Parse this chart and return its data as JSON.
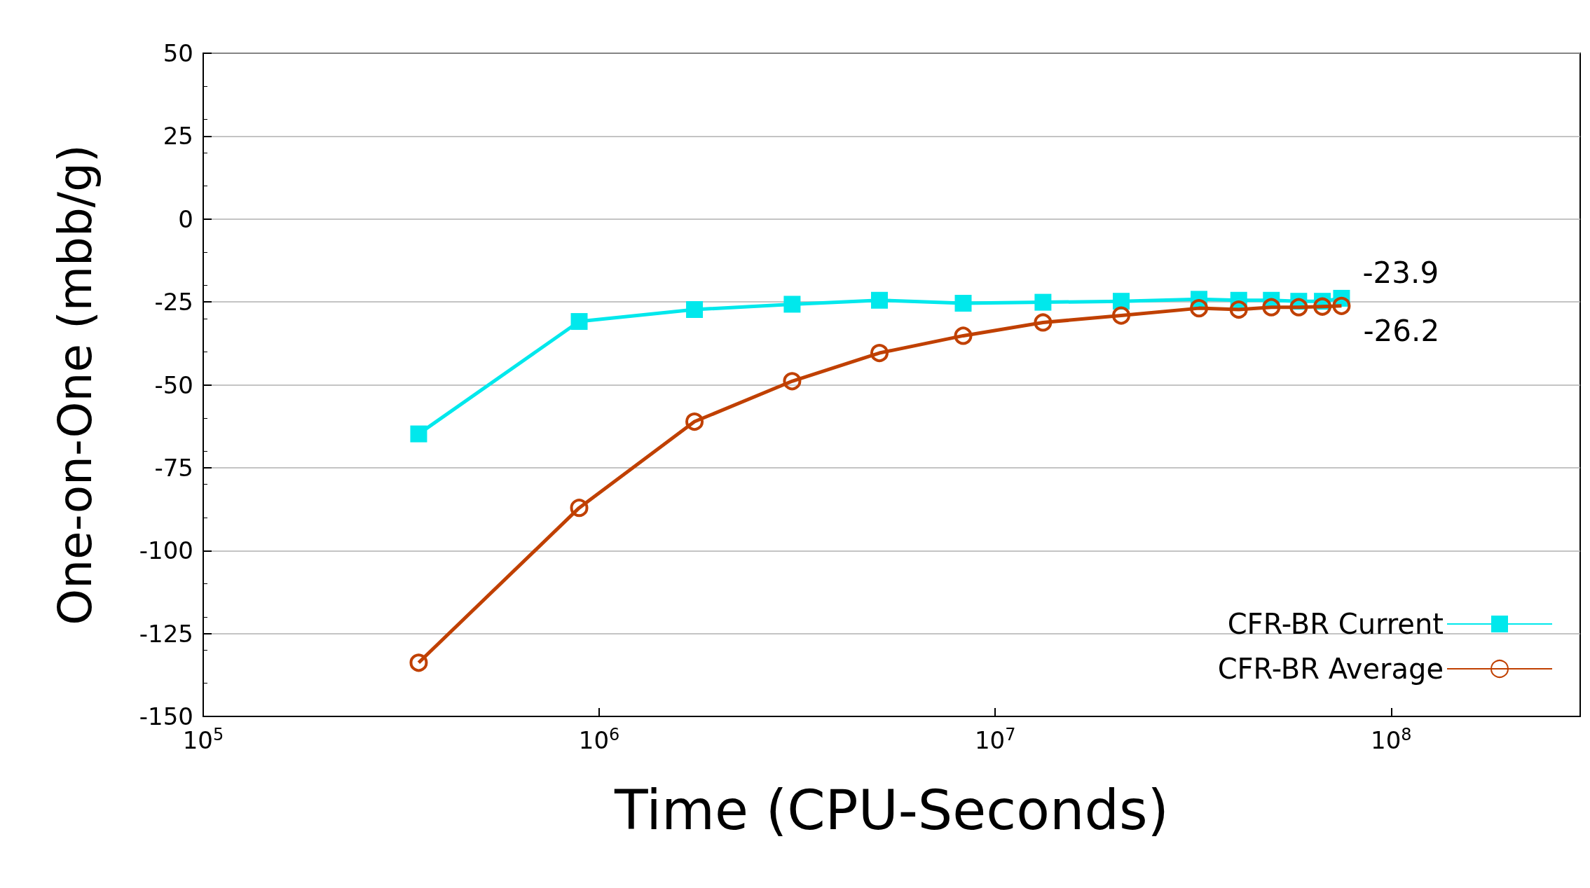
{
  "chart_data": {
    "type": "line",
    "xlabel": "Time (CPU-Seconds)",
    "ylabel": "One-on-One (mbb/g)",
    "log": "x",
    "xlim": [
      100000,
      300000000
    ],
    "xticks": [
      {
        "value": 100000,
        "label": "10$^{5}$"
      },
      {
        "value": 1000000,
        "label": "10$^{6}$"
      },
      {
        "value": 10000000,
        "label": "10$^{7}$"
      },
      {
        "value": 100000000,
        "label": "10$^{8}$"
      }
    ],
    "ylim": [
      -150,
      50
    ],
    "yticks": [
      -150,
      -125,
      -100,
      -75,
      -50,
      -25,
      0,
      25,
      50
    ],
    "grid": "y",
    "legend": "bottom right",
    "series": [
      {
        "name": "CFR-BR Current",
        "color": "#00e8ec",
        "marker": "square",
        "x": [
          350000,
          890000,
          1740000,
          3070000,
          5100000,
          8300000,
          13200000,
          20800000,
          32700000,
          41200000,
          49800000,
          58400000,
          67000000,
          74900000
        ],
        "values": [
          -64.8,
          -30.9,
          -27.3,
          -25.7,
          -24.5,
          -25.4,
          -25.1,
          -24.8,
          -24.2,
          -24.5,
          -24.5,
          -24.8,
          -24.8,
          -23.9
        ],
        "value_labels": [
          null,
          null,
          null,
          null,
          null,
          null,
          null,
          null,
          null,
          null,
          null,
          null,
          null,
          "-23.9"
        ]
      },
      {
        "name": "CFR-BR Average",
        "color": "#c04000",
        "marker": "circle",
        "x": [
          350000,
          890000,
          1740000,
          3070000,
          5100000,
          8300000,
          13200000,
          20800000,
          32700000,
          41200000,
          49800000,
          58400000,
          67000000,
          74900000
        ],
        "values": [
          -133.8,
          -87.1,
          -61.1,
          -48.9,
          -40.4,
          -35.2,
          -31.2,
          -29.1,
          -26.9,
          -27.3,
          -26.6,
          -26.6,
          -26.4,
          -26.2
        ],
        "value_labels": [
          null,
          null,
          null,
          null,
          null,
          null,
          null,
          null,
          null,
          null,
          null,
          null,
          null,
          "-26.2"
        ]
      }
    ]
  }
}
